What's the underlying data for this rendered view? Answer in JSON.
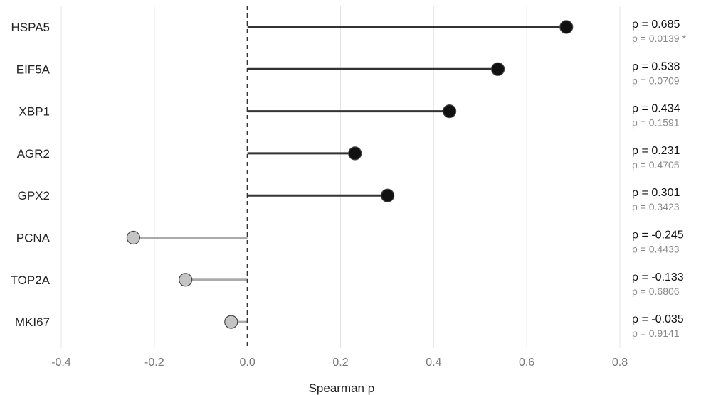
{
  "chart_data": {
    "type": "lollipop",
    "title": "",
    "xlabel": "Spearman ρ",
    "ylabel": "",
    "xlim": [
      -0.4,
      0.8
    ],
    "x_ticks": [
      -0.4,
      -0.2,
      0.0,
      0.2,
      0.4,
      0.6,
      0.8
    ],
    "x_tick_labels": [
      "-0.4",
      "-0.2",
      "0.0",
      "0.2",
      "0.4",
      "0.6",
      "0.8"
    ],
    "grid": true,
    "reference_line": 0,
    "positive_color": "#111111",
    "negative_color": "#c4c4c4",
    "positive_stem_color": "#333333",
    "negative_stem_color": "#aaaaaa",
    "genes": [
      {
        "name": "HSPA5",
        "rho": 0.685,
        "rho_label": "ρ = 0.685",
        "p_label": "p = 0.0139 *"
      },
      {
        "name": "EIF5A",
        "rho": 0.538,
        "rho_label": "ρ = 0.538",
        "p_label": "p = 0.0709"
      },
      {
        "name": "XBP1",
        "rho": 0.434,
        "rho_label": "ρ = 0.434",
        "p_label": "p = 0.1591"
      },
      {
        "name": "AGR2",
        "rho": 0.231,
        "rho_label": "ρ = 0.231",
        "p_label": "p = 0.4705"
      },
      {
        "name": "GPX2",
        "rho": 0.301,
        "rho_label": "ρ = 0.301",
        "p_label": "p = 0.3423"
      },
      {
        "name": "PCNA",
        "rho": -0.245,
        "rho_label": "ρ = -0.245",
        "p_label": "p = 0.4433"
      },
      {
        "name": "TOP2A",
        "rho": -0.133,
        "rho_label": "ρ = -0.133",
        "p_label": "p = 0.6806"
      },
      {
        "name": "MKI67",
        "rho": -0.035,
        "rho_label": "ρ = -0.035",
        "p_label": "p = 0.9141"
      }
    ]
  }
}
